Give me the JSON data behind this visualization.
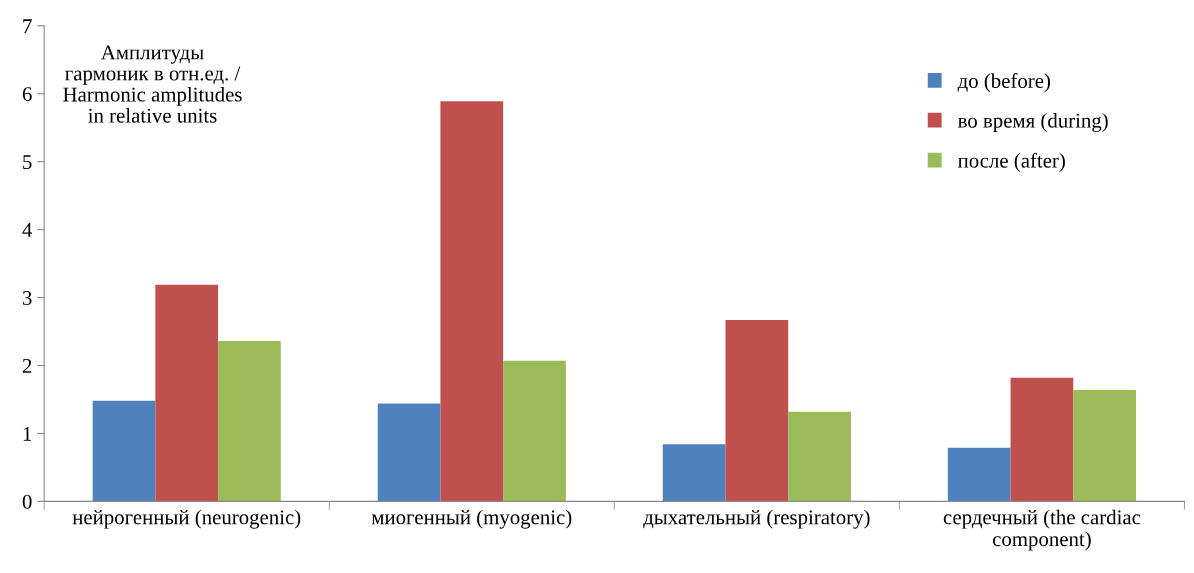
{
  "chart_data": {
    "type": "bar",
    "ylabel": "Амплитуды\nгармоник в отн.ед. /\nHarmonic amplitudes\nin relative units",
    "categories": [
      "нейрогенный (neurogenic)",
      "миогенный (myogenic)",
      "дыхательный (respiratory)",
      "сердечный (the cardiac\ncomponent)"
    ],
    "series": [
      {
        "name": "до (before)",
        "color": "#4f81bd",
        "values": [
          1.48,
          1.44,
          0.84,
          0.79
        ]
      },
      {
        "name": "во время (during)",
        "color": "#c0504d",
        "values": [
          3.19,
          5.89,
          2.67,
          1.82
        ]
      },
      {
        "name": "после (after)",
        "color": "#9bbb59",
        "values": [
          2.36,
          2.07,
          1.32,
          1.64
        ]
      }
    ],
    "ylim": [
      0,
      7
    ],
    "yticks": [
      0,
      1,
      2,
      3,
      4,
      5,
      6,
      7
    ],
    "grid": false,
    "legend": "top right"
  }
}
